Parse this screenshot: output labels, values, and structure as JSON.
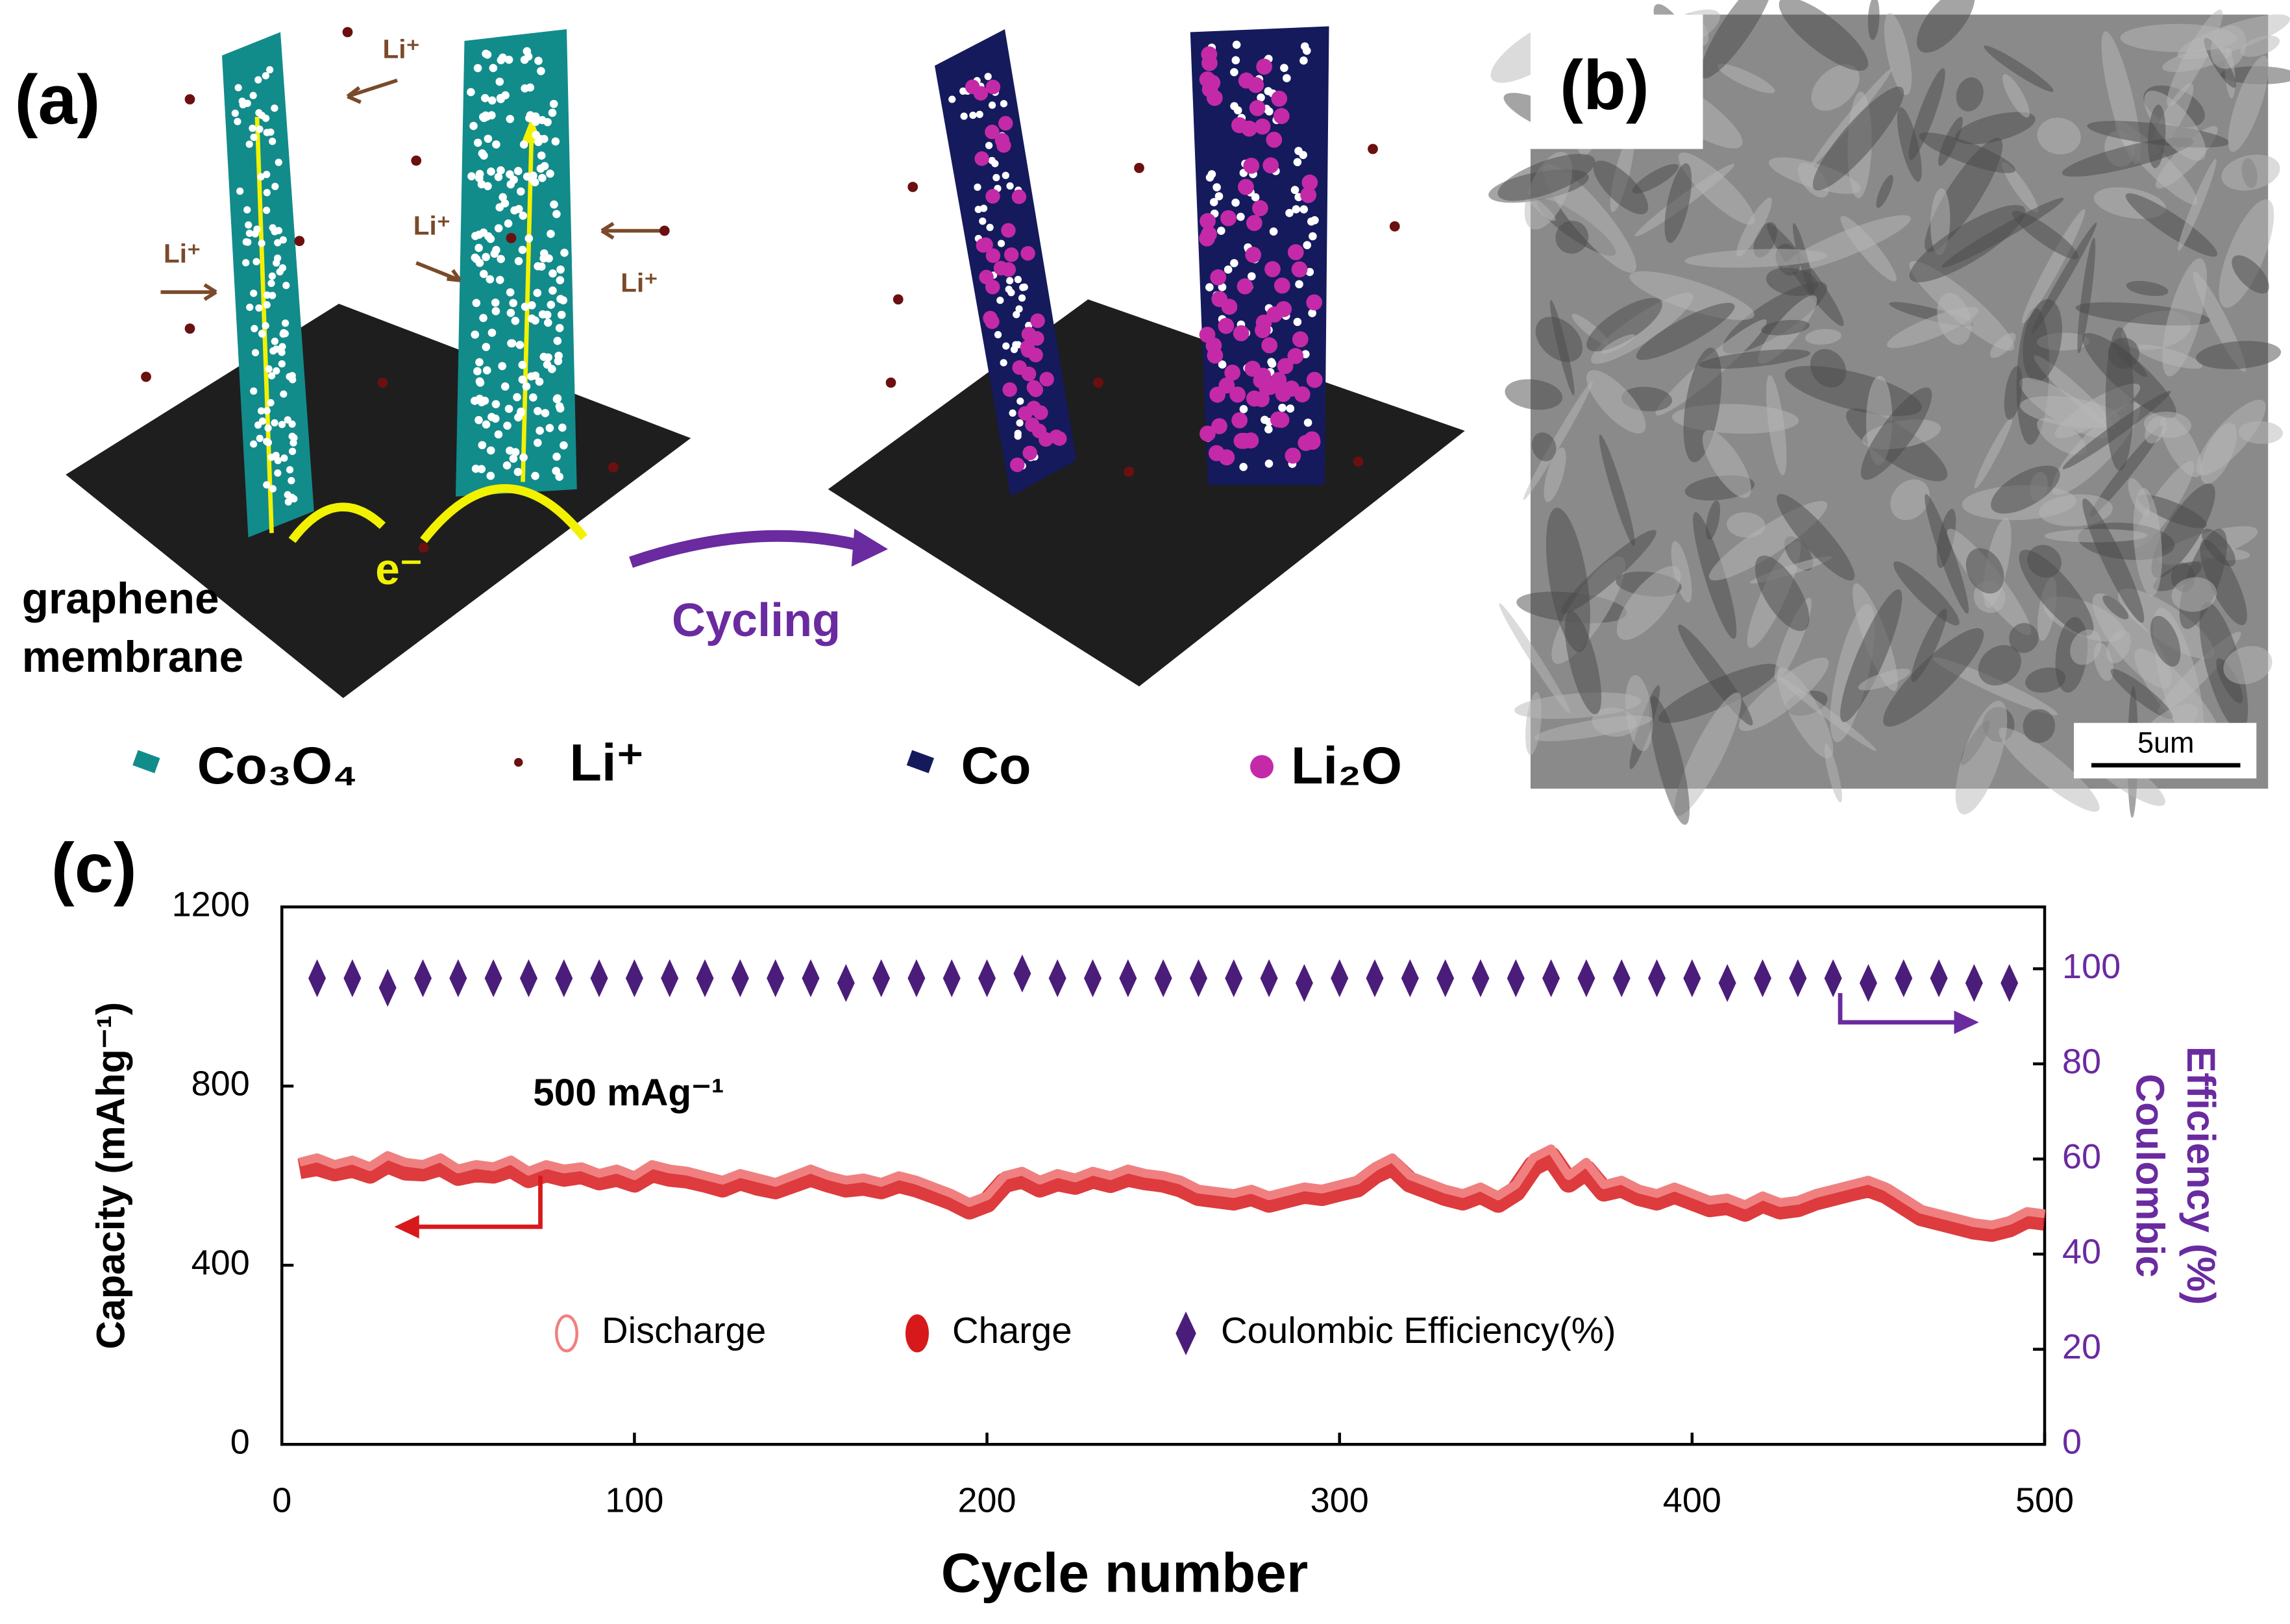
{
  "panel_a": {
    "label": "(a)",
    "li_labels": [
      "Li⁺",
      "Li⁺",
      "Li⁺",
      "Li⁺"
    ],
    "electron": "e⁻",
    "substrate": [
      "graphene",
      "membrane"
    ],
    "process": "Cycling",
    "legend": [
      "Co₃O₄",
      "Li⁺",
      "Co",
      "Li₂O"
    ]
  },
  "panel_b": {
    "label": "(b)",
    "scale_bar": "5um"
  },
  "chart_data": {
    "panel_label": "(c)",
    "type": "line",
    "xlabel": "Cycle number",
    "ylabel": "Capacity (mAhg⁻¹)",
    "y2label": [
      "Coulombic",
      "Efficiency (%)"
    ],
    "annotation": "500 mAg⁻¹",
    "xlim": [
      0,
      500
    ],
    "xticks": [
      0,
      100,
      200,
      300,
      400,
      500
    ],
    "ylim": [
      0,
      1200
    ],
    "yticks": [
      0,
      400,
      800,
      1200
    ],
    "y2lim": [
      0,
      113
    ],
    "y2ticks": [
      0,
      20,
      40,
      60,
      80,
      100
    ],
    "x": [
      5,
      10,
      15,
      20,
      25,
      30,
      35,
      40,
      45,
      50,
      55,
      60,
      65,
      70,
      75,
      80,
      85,
      90,
      95,
      100,
      105,
      110,
      115,
      120,
      125,
      130,
      135,
      140,
      145,
      150,
      155,
      160,
      165,
      170,
      175,
      180,
      185,
      190,
      195,
      200,
      205,
      210,
      215,
      220,
      225,
      230,
      235,
      240,
      245,
      250,
      255,
      260,
      265,
      270,
      275,
      280,
      285,
      290,
      295,
      300,
      305,
      310,
      315,
      320,
      325,
      330,
      335,
      340,
      345,
      350,
      355,
      360,
      365,
      370,
      375,
      380,
      385,
      390,
      395,
      400,
      405,
      410,
      415,
      420,
      425,
      430,
      435,
      440,
      445,
      450,
      455,
      460,
      465,
      470,
      475,
      480,
      485,
      490,
      495,
      500
    ],
    "series": [
      {
        "name": "Discharge",
        "color": "#f08080",
        "values": [
          630,
          640,
          625,
          635,
          620,
          645,
          630,
          625,
          640,
          615,
          625,
          620,
          635,
          610,
          625,
          615,
          620,
          605,
          615,
          600,
          625,
          615,
          610,
          600,
          590,
          605,
          595,
          585,
          600,
          615,
          600,
          590,
          595,
          585,
          600,
          590,
          575,
          560,
          540,
          555,
          600,
          610,
          590,
          605,
          595,
          610,
          600,
          615,
          605,
          600,
          590,
          570,
          565,
          560,
          570,
          555,
          565,
          575,
          570,
          580,
          590,
          620,
          640,
          600,
          585,
          570,
          560,
          575,
          555,
          580,
          640,
          660,
          600,
          630,
          580,
          590,
          570,
          560,
          575,
          560,
          545,
          550,
          535,
          555,
          540,
          545,
          560,
          570,
          580,
          590,
          575,
          550,
          525,
          515,
          505,
          495,
          490,
          500,
          520,
          515
        ]
      },
      {
        "name": "Charge",
        "color": "#d7191c",
        "values": [
          615,
          622,
          610,
          618,
          605,
          628,
          612,
          610,
          622,
          600,
          608,
          605,
          618,
          595,
          608,
          598,
          604,
          590,
          598,
          585,
          608,
          598,
          594,
          585,
          574,
          590,
          578,
          570,
          584,
          598,
          585,
          574,
          578,
          570,
          584,
          574,
          560,
          545,
          525,
          540,
          584,
          594,
          574,
          588,
          580,
          594,
          584,
          598,
          590,
          585,
          574,
          555,
          550,
          545,
          555,
          540,
          550,
          560,
          555,
          565,
          574,
          604,
          622,
          585,
          570,
          555,
          545,
          560,
          540,
          565,
          622,
          642,
          585,
          612,
          565,
          574,
          555,
          545,
          560,
          545,
          530,
          535,
          520,
          540,
          525,
          530,
          545,
          555,
          565,
          574,
          560,
          535,
          510,
          500,
          490,
          480,
          475,
          485,
          505,
          500
        ]
      },
      {
        "name": "Coulombic Efficiency(%)",
        "color": "#4b1d7a",
        "axis": "y2",
        "marker": "diamond",
        "x": [
          10,
          20,
          30,
          40,
          50,
          60,
          70,
          80,
          90,
          100,
          110,
          120,
          130,
          140,
          150,
          160,
          170,
          180,
          190,
          200,
          210,
          220,
          230,
          240,
          250,
          260,
          270,
          280,
          290,
          300,
          310,
          320,
          330,
          340,
          350,
          360,
          370,
          380,
          390,
          400,
          410,
          420,
          430,
          440,
          450,
          460,
          470,
          480,
          490
        ],
        "values": [
          98,
          98,
          96,
          98,
          98,
          98,
          98,
          98,
          98,
          98,
          98,
          98,
          98,
          98,
          98,
          97,
          98,
          98,
          98,
          98,
          99,
          98,
          98,
          98,
          98,
          98,
          98,
          98,
          97,
          98,
          98,
          98,
          98,
          98,
          98,
          98,
          98,
          98,
          98,
          98,
          97,
          98,
          98,
          98,
          97,
          98,
          98,
          97,
          97
        ]
      }
    ]
  }
}
